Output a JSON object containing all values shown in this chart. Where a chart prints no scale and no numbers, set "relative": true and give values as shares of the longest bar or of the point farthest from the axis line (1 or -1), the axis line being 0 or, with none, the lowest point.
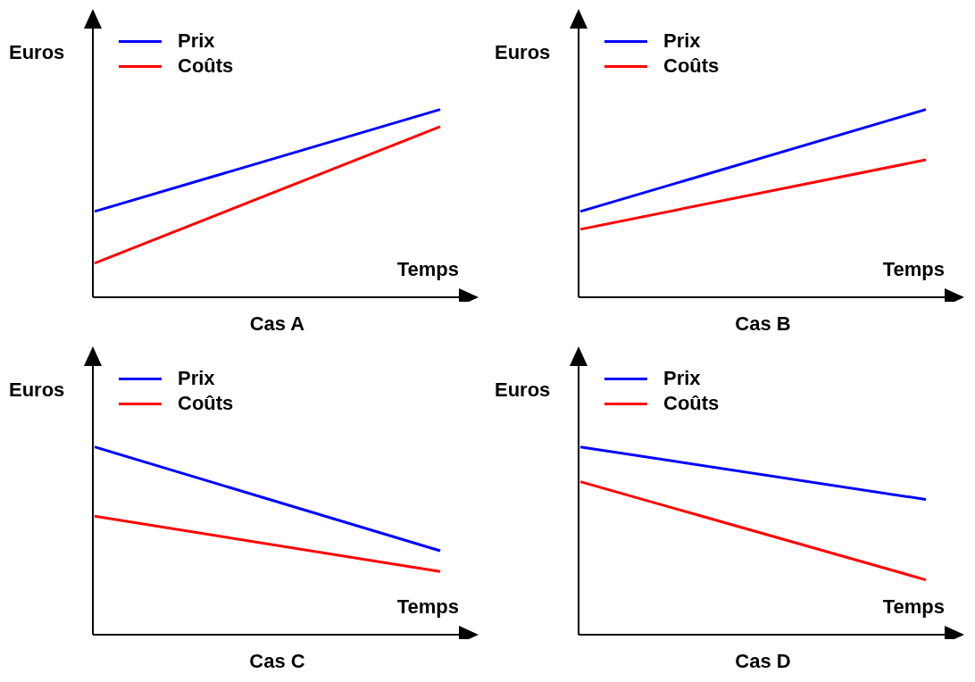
{
  "chart_data": [
    {
      "type": "line",
      "title": "Cas A",
      "xlabel": "Temps",
      "ylabel": "Euros",
      "relative": true,
      "legend": "top left",
      "categories": [
        null,
        null
      ],
      "series": [
        {
          "name": "Prix",
          "color": "#0000ff",
          "values": [
            0.457,
            1
          ]
        },
        {
          "name": "Coûts",
          "color": "#ff0000",
          "values": [
            0.181,
            0.909
          ]
        }
      ]
    },
    {
      "type": "line",
      "title": "Cas B",
      "xlabel": "Temps",
      "ylabel": "Euros",
      "relative": true,
      "legend": "top left",
      "categories": [
        null,
        null
      ],
      "series": [
        {
          "name": "Prix",
          "color": "#0000ff",
          "values": [
            0.457,
            1
          ]
        },
        {
          "name": "Coûts",
          "color": "#ff0000",
          "values": [
            0.362,
            0.732
          ]
        }
      ]
    },
    {
      "type": "line",
      "title": "Cas C",
      "xlabel": "Temps",
      "ylabel": "Euros",
      "relative": true,
      "legend": "top left",
      "categories": [
        null,
        null
      ],
      "series": [
        {
          "name": "Prix",
          "color": "#0000ff",
          "values": [
            1,
            0.447
          ]
        },
        {
          "name": "Coûts",
          "color": "#ff0000",
          "values": [
            0.631,
            0.336
          ]
        }
      ]
    },
    {
      "type": "line",
      "title": "Cas D",
      "xlabel": "Temps",
      "ylabel": "Euros",
      "relative": true,
      "legend": "top left",
      "categories": [
        null,
        null
      ],
      "series": [
        {
          "name": "Prix",
          "color": "#0000ff",
          "values": [
            1,
            0.72
          ]
        },
        {
          "name": "Coûts",
          "color": "#ff0000",
          "values": [
            0.815,
            0.292
          ]
        }
      ]
    }
  ]
}
